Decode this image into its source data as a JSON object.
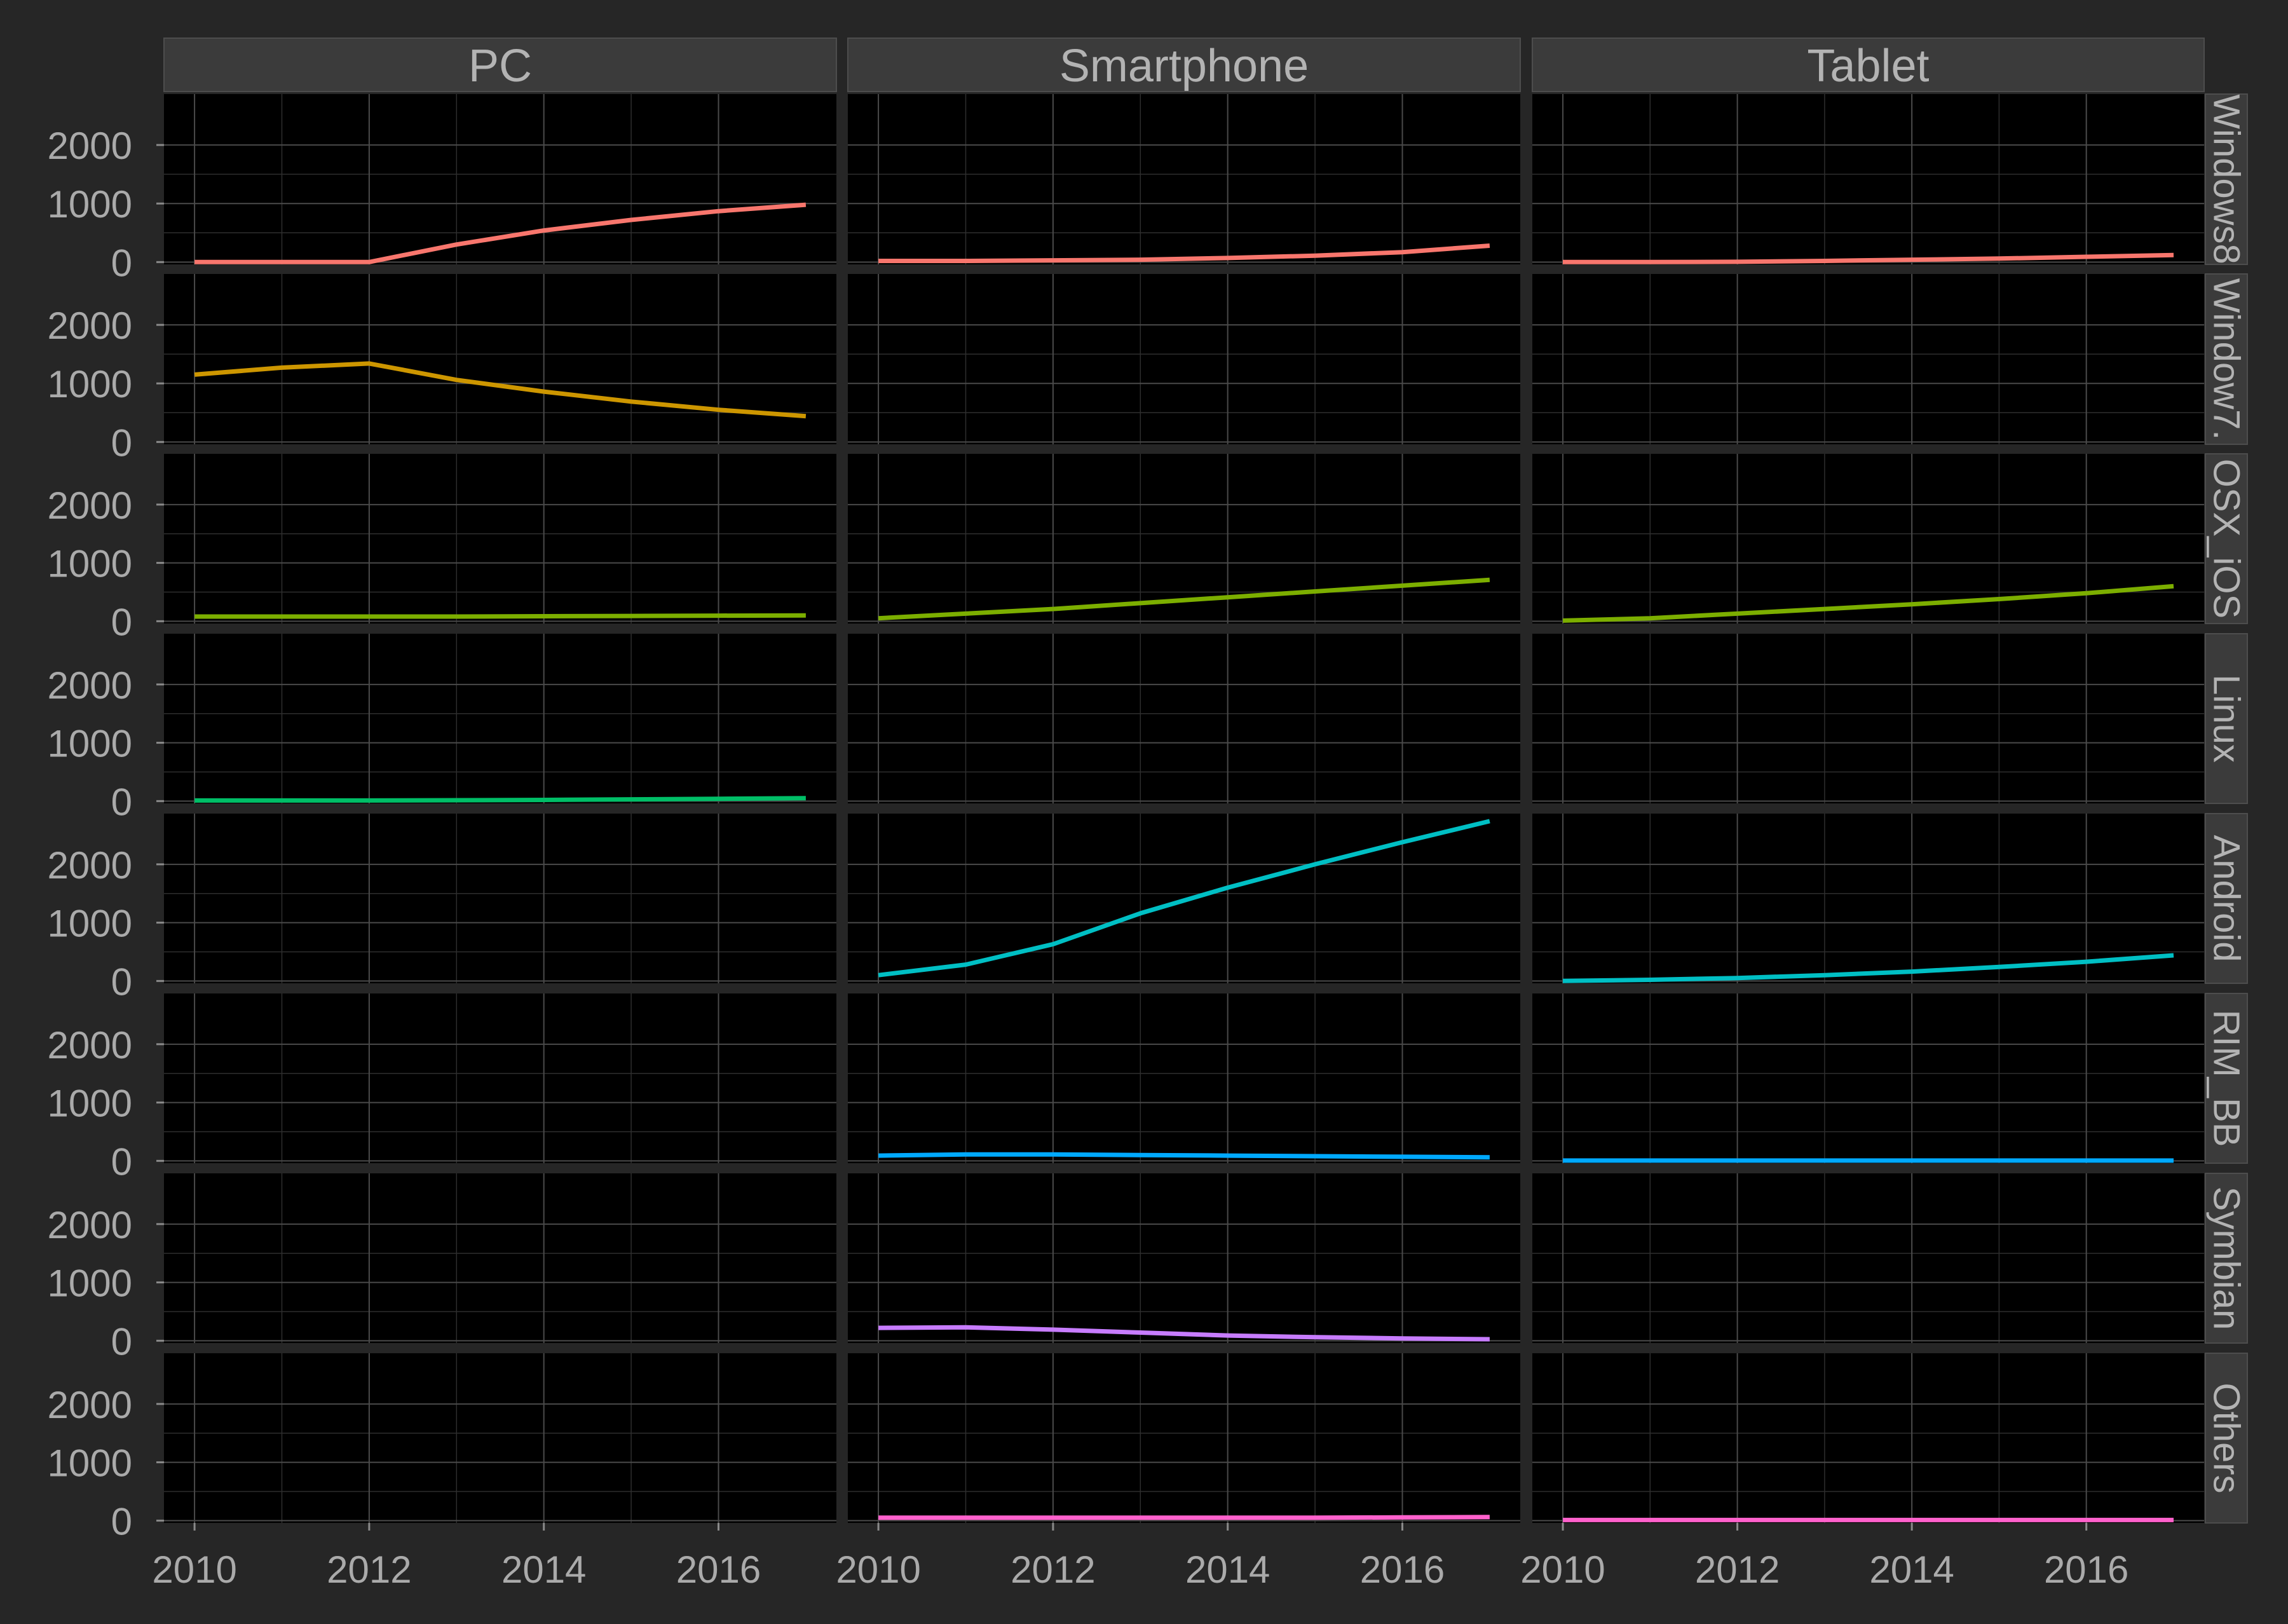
{
  "chart_data": {
    "type": "line",
    "title": "",
    "xlabel": "",
    "ylabel": "",
    "facet_columns": [
      "PC",
      "Smartphone",
      "Tablet"
    ],
    "facet_rows": [
      "Windows8",
      "Window7.",
      "OSX_iOS",
      "Linux",
      "Android",
      "RIM_BB",
      "Symbian",
      "Others"
    ],
    "x": [
      2010,
      2011,
      2012,
      2013,
      2014,
      2015,
      2016,
      2017
    ],
    "x_ticks": [
      "2010",
      "2012",
      "2014",
      "2016"
    ],
    "y_ticks": [
      "0",
      "1000",
      "2000"
    ],
    "xlim": [
      2009.65,
      2017.35
    ],
    "ylim": [
      -40,
      2870
    ],
    "grid": true,
    "legend": "none",
    "colors": {
      "Windows8": "#F8766D",
      "Window7.": "#CD9600",
      "OSX_iOS": "#7CAE00",
      "Linux": "#00BE67",
      "Android": "#00BFC4",
      "RIM_BB": "#00A9FF",
      "Symbian": "#C77CFF",
      "Others": "#FF61CC"
    },
    "series": [
      {
        "row": "Windows8",
        "column": "PC",
        "values": [
          0,
          0,
          0,
          300,
          540,
          720,
          870,
          980
        ]
      },
      {
        "row": "Windows8",
        "column": "Smartphone",
        "values": [
          20,
          20,
          30,
          40,
          70,
          110,
          170,
          280
        ]
      },
      {
        "row": "Windows8",
        "column": "Tablet",
        "values": [
          0,
          0,
          5,
          20,
          40,
          60,
          90,
          120
        ]
      },
      {
        "row": "Window7.",
        "column": "PC",
        "values": [
          1150,
          1270,
          1340,
          1060,
          860,
          690,
          550,
          440
        ]
      },
      {
        "row": "OSX_iOS",
        "column": "PC",
        "values": [
          80,
          80,
          80,
          80,
          85,
          90,
          95,
          100
        ]
      },
      {
        "row": "OSX_iOS",
        "column": "Smartphone",
        "values": [
          50,
          130,
          210,
          310,
          410,
          510,
          610,
          710
        ]
      },
      {
        "row": "OSX_iOS",
        "column": "Tablet",
        "values": [
          10,
          50,
          130,
          210,
          290,
          380,
          480,
          600
        ]
      },
      {
        "row": "Linux",
        "column": "PC",
        "values": [
          10,
          10,
          10,
          15,
          20,
          30,
          40,
          50
        ]
      },
      {
        "row": "Android",
        "column": "Smartphone",
        "values": [
          100,
          280,
          630,
          1160,
          1600,
          2000,
          2380,
          2740
        ]
      },
      {
        "row": "Android",
        "column": "Tablet",
        "values": [
          0,
          20,
          50,
          100,
          160,
          240,
          330,
          440
        ]
      },
      {
        "row": "RIM_BB",
        "column": "Smartphone",
        "values": [
          90,
          110,
          110,
          100,
          90,
          80,
          70,
          60
        ]
      },
      {
        "row": "RIM_BB",
        "column": "Tablet",
        "values": [
          5,
          5,
          5,
          5,
          5,
          5,
          5,
          5
        ]
      },
      {
        "row": "Symbian",
        "column": "Smartphone",
        "values": [
          220,
          230,
          190,
          140,
          90,
          60,
          40,
          25
        ]
      },
      {
        "row": "Others",
        "column": "Smartphone",
        "values": [
          50,
          50,
          50,
          50,
          50,
          50,
          55,
          60
        ]
      },
      {
        "row": "Others",
        "column": "Tablet",
        "values": [
          10,
          10,
          10,
          10,
          10,
          10,
          10,
          10
        ]
      }
    ]
  }
}
